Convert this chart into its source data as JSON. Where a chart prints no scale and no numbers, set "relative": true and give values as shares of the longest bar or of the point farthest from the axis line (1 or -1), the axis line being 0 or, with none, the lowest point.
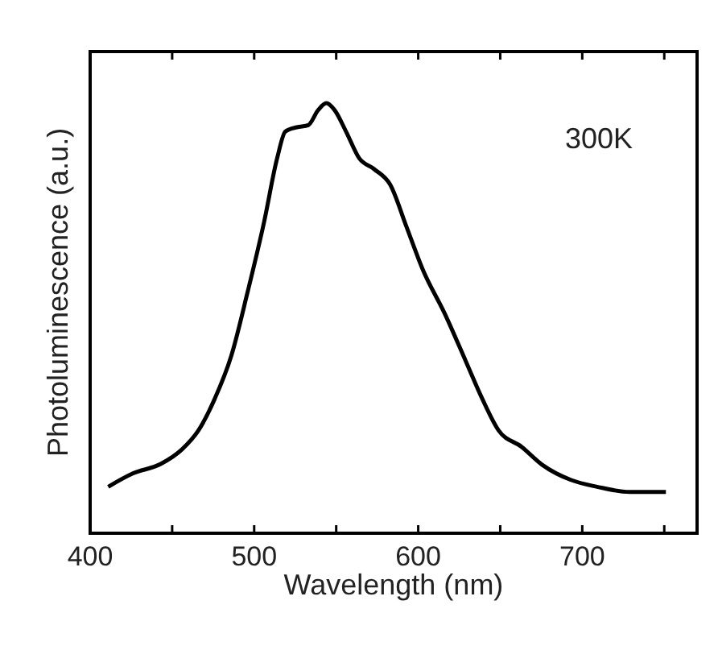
{
  "chart_data": {
    "type": "line",
    "xlabel": "Wavelength (nm)",
    "ylabel": "Photoluminescence (a.u.)",
    "relative": true,
    "annotations": [
      "300K"
    ],
    "xlim": [
      400,
      770
    ],
    "xticks": [
      400,
      {
        "value": 450,
        "label": null
      },
      500,
      {
        "value": 550,
        "label": null
      },
      600,
      {
        "value": 650,
        "label": null
      },
      700,
      {
        "value": 750,
        "label": null
      }
    ],
    "series": [
      {
        "color": "#000000",
        "x": [
          411,
          426,
          443,
          456,
          466,
          476,
          486,
          496,
          506,
          514,
          519,
          526,
          533,
          539,
          544,
          549,
          556,
          564,
          573,
          583,
          593,
          603,
          616,
          629,
          639,
          649,
          663,
          676,
          693,
          709,
          729,
          751
        ],
        "values": [
          0.108,
          0.139,
          0.161,
          0.195,
          0.239,
          0.313,
          0.412,
          0.561,
          0.723,
          0.872,
          0.934,
          0.944,
          0.949,
          0.984,
          1.0,
          0.984,
          0.934,
          0.872,
          0.847,
          0.81,
          0.711,
          0.611,
          0.512,
          0.4,
          0.313,
          0.239,
          0.201,
          0.158,
          0.124,
          0.108,
          0.096,
          0.096
        ]
      }
    ]
  }
}
